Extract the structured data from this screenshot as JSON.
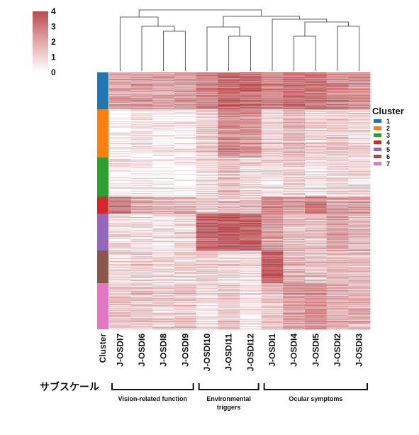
{
  "chart_data": {
    "type": "heatmap",
    "columns": [
      "J-OSDI7",
      "J-OSDI6",
      "J-OSDI8",
      "J-OSDI9",
      "J-OSDI10",
      "J-OSDI11",
      "J-OSDI12",
      "J-OSDI1",
      "J-OSDI4",
      "J-OSDI5",
      "J-OSDI2",
      "J-OSDI3"
    ],
    "row_annotation_label": "Cluster",
    "clusters": [
      {
        "name": "1",
        "color": "#1f77b4",
        "rows": 52,
        "mean_values": [
          2.0,
          2.0,
          1.9,
          2.1,
          2.6,
          3.2,
          3.2,
          2.6,
          3.0,
          3.0,
          2.6,
          2.4
        ]
      },
      {
        "name": "2",
        "color": "#ff7f0e",
        "rows": 68,
        "mean_values": [
          0.4,
          0.6,
          0.5,
          0.4,
          1.2,
          2.5,
          2.3,
          1.0,
          1.6,
          1.0,
          1.2,
          1.0
        ]
      },
      {
        "name": "3",
        "color": "#2ca02c",
        "rows": 55,
        "mean_values": [
          0.4,
          0.3,
          0.2,
          0.2,
          0.7,
          1.3,
          0.9,
          0.7,
          1.0,
          0.6,
          0.8,
          0.8
        ]
      },
      {
        "name": "4",
        "color": "#d62728",
        "rows": 24,
        "mean_values": [
          2.8,
          1.8,
          1.5,
          1.6,
          1.0,
          1.3,
          1.4,
          2.4,
          2.3,
          2.9,
          2.0,
          1.9
        ]
      },
      {
        "name": "5",
        "color": "#9467bd",
        "rows": 52,
        "mean_values": [
          0.7,
          0.8,
          0.7,
          0.8,
          3.3,
          3.6,
          3.5,
          2.0,
          1.4,
          1.4,
          2.0,
          1.6
        ]
      },
      {
        "name": "6",
        "color": "#8c564b",
        "rows": 46,
        "mean_values": [
          0.8,
          1.0,
          0.8,
          0.9,
          1.0,
          1.0,
          0.7,
          3.6,
          1.5,
          1.3,
          1.6,
          1.4
        ]
      },
      {
        "name": "7",
        "color": "#e377c2",
        "rows": 65,
        "mean_values": [
          1.2,
          1.3,
          1.0,
          1.2,
          0.7,
          1.2,
          0.6,
          1.4,
          2.1,
          2.3,
          1.8,
          1.7
        ]
      }
    ],
    "colorbar": {
      "min": 0,
      "max": 4,
      "ticks": [
        "0",
        "1",
        "2",
        "3",
        "4"
      ],
      "low_color": "#ffffff",
      "high_color": "#b84a4e"
    },
    "legend": {
      "title": "Cluster",
      "position": "right",
      "entries": [
        "1",
        "2",
        "3",
        "4",
        "5",
        "6",
        "7"
      ]
    },
    "subscale_label": "サブスケール",
    "column_groups": [
      {
        "label": "Vision-related function",
        "start": 0,
        "end": 3
      },
      {
        "label": "Environmental triggers",
        "start": 4,
        "end": 6
      },
      {
        "label": "Ocular symptoms",
        "start": 7,
        "end": 11
      }
    ],
    "dendrogram": {
      "present": true,
      "position": "top"
    }
  }
}
